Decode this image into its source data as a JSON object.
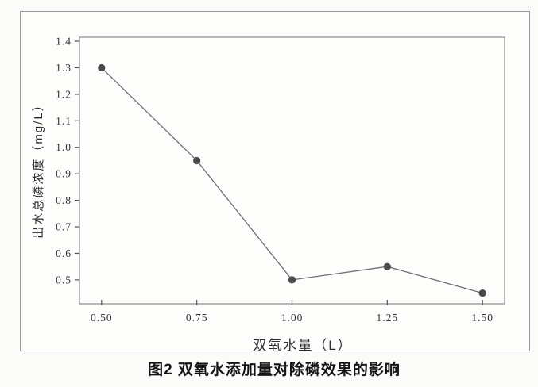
{
  "caption": "图2 双氧水添加量对除磷效果的影响",
  "chart_data": {
    "type": "line",
    "title": "",
    "xlabel": "双氧水量（L）",
    "ylabel": "出水总磷浓度（mg/L）",
    "x": [
      0.5,
      0.75,
      1.0,
      1.25,
      1.5
    ],
    "y": [
      1.3,
      0.95,
      0.5,
      0.55,
      0.45
    ],
    "series_name": "出水总磷浓度",
    "x_tick_labels": [
      "0.50",
      "0.75",
      "1.00",
      "1.25",
      "1.50"
    ],
    "y_tick_labels": [
      "0.5",
      "0.6",
      "0.7",
      "0.8",
      "0.9",
      "1.0",
      "1.1",
      "1.2",
      "1.3",
      "1.4"
    ],
    "xlim": [
      0.442,
      1.558
    ],
    "ylim": [
      0.41,
      1.415
    ],
    "grid": false,
    "legend": "none",
    "marker": "circle",
    "colors": {
      "line": "#6f6f6f",
      "marker": "#4a4a4a",
      "plot_border": "#8c8c8c",
      "figure_border": "#9b9b9b",
      "tick": "#555555",
      "text": "#333333"
    }
  }
}
